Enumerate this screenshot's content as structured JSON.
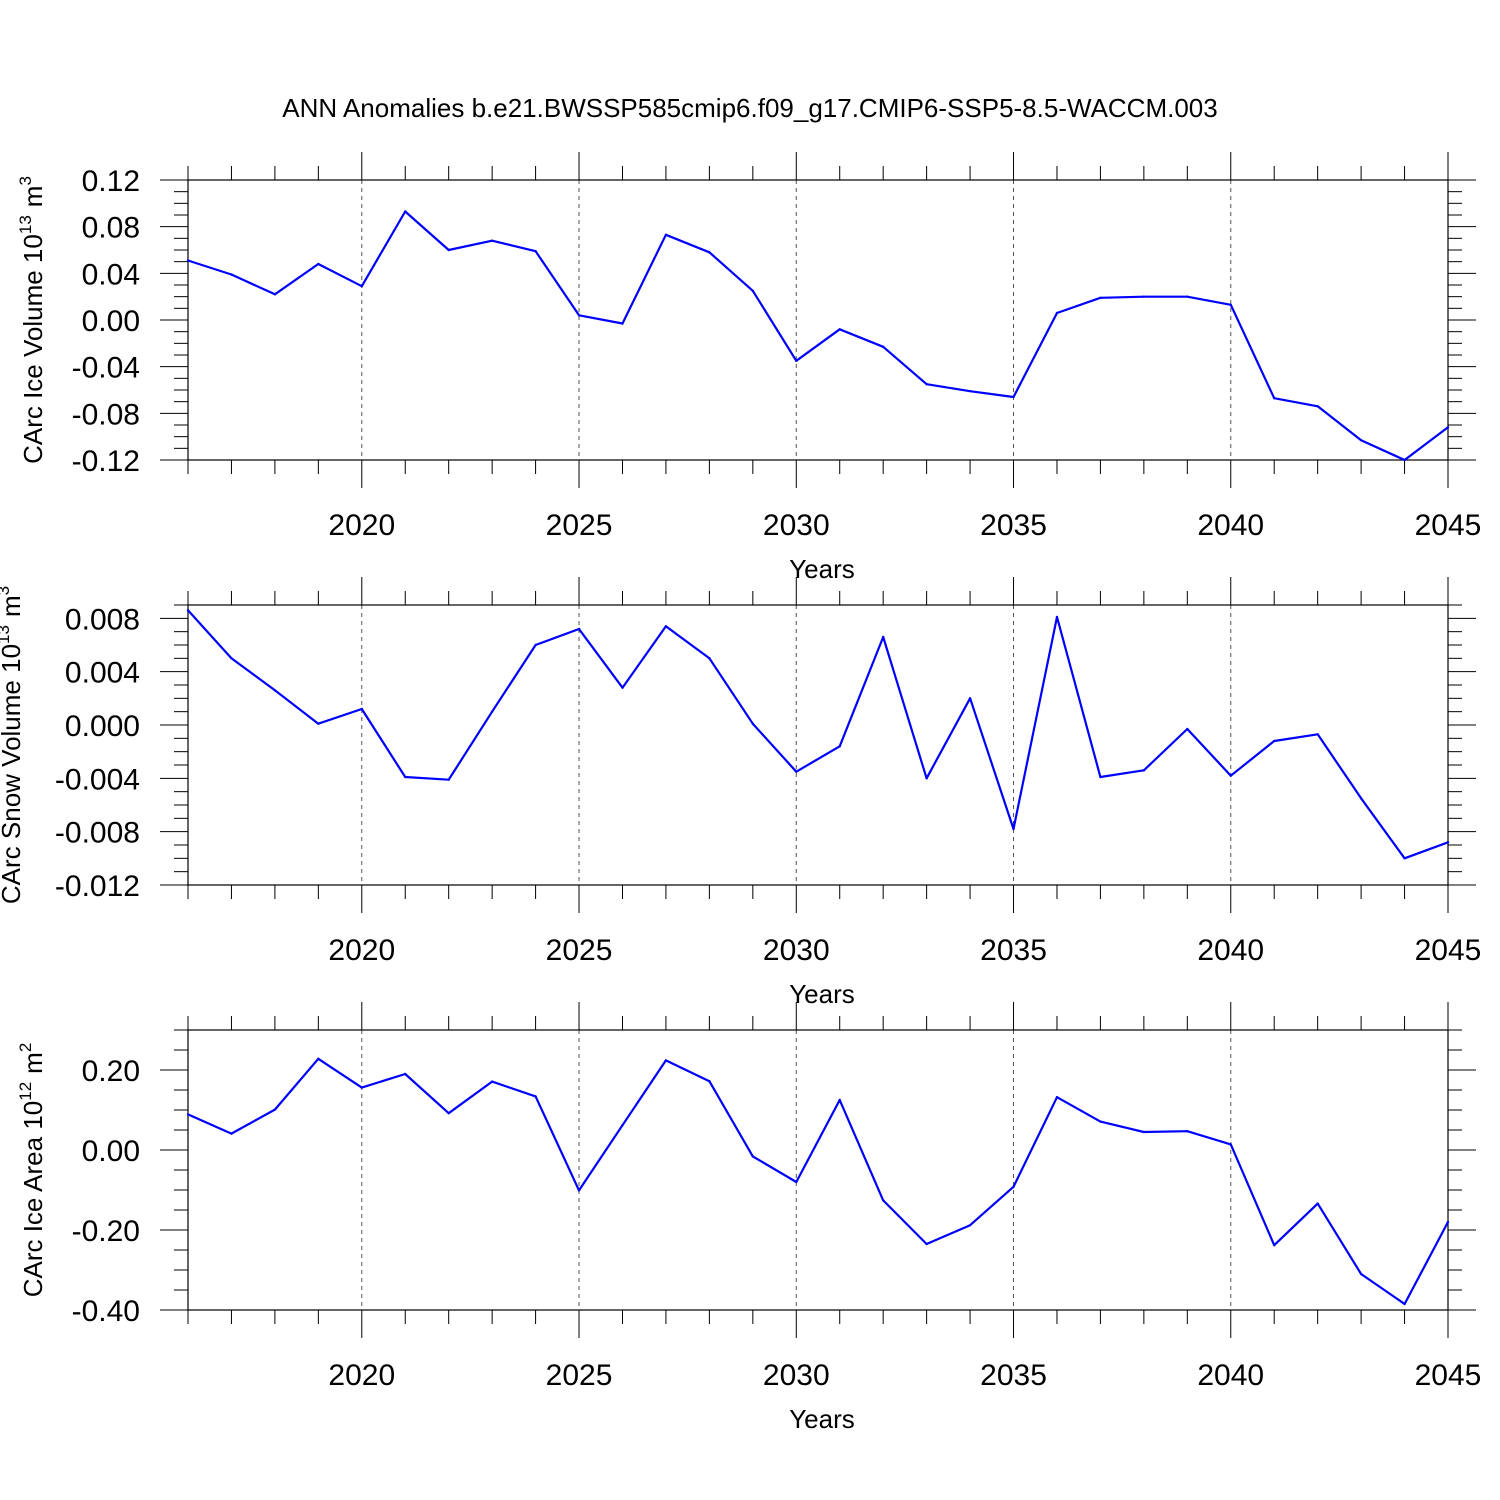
{
  "title": "ANN Anomalies b.e21.BWSSP585cmip6.f09_g17.CMIP6-SSP5-8.5-WACCM.003",
  "colors": {
    "series": "#0000ff",
    "axis": "#000000",
    "grid": "#555555"
  },
  "chart_data": [
    {
      "type": "line",
      "title": "",
      "xlabel": "Years",
      "ylabel": "CArc Ice Volume 10",
      "ylabel_exp": "13",
      "ylabel_unit": "m",
      "ylabel_unit_exp": "3",
      "xlim": [
        2016,
        2045
      ],
      "ylim": [
        -0.12,
        0.12
      ],
      "yticks": [
        0.12,
        0.08,
        0.04,
        0.0,
        -0.04,
        -0.08,
        -0.12
      ],
      "ytick_labels": [
        "0.12",
        "0.08",
        "0.04",
        "0.00",
        "-0.04",
        "-0.08",
        "-0.12"
      ],
      "xticks": [
        2020,
        2025,
        2030,
        2035,
        2040,
        2045
      ],
      "xtick_labels": [
        "2020",
        "2025",
        "2030",
        "2035",
        "2040",
        "2045"
      ],
      "x": [
        2016,
        2017,
        2018,
        2019,
        2020,
        2021,
        2022,
        2023,
        2024,
        2025,
        2026,
        2027,
        2028,
        2029,
        2030,
        2031,
        2032,
        2033,
        2034,
        2035,
        2036,
        2037,
        2038,
        2039,
        2040,
        2041,
        2042,
        2043,
        2044,
        2045
      ],
      "y": [
        0.051,
        0.039,
        0.022,
        0.048,
        0.029,
        0.093,
        0.06,
        0.068,
        0.059,
        0.004,
        -0.003,
        0.073,
        0.058,
        0.025,
        -0.035,
        -0.008,
        -0.023,
        -0.055,
        -0.061,
        -0.066,
        0.006,
        0.019,
        0.02,
        0.02,
        0.013,
        -0.067,
        -0.074,
        -0.103,
        -0.12,
        -0.092
      ]
    },
    {
      "type": "line",
      "title": "",
      "xlabel": "Years",
      "ylabel": "CArc Snow Volume 10",
      "ylabel_exp": "13",
      "ylabel_unit": "m",
      "ylabel_unit_exp": "3",
      "xlim": [
        2016,
        2045
      ],
      "ylim": [
        -0.012,
        0.009
      ],
      "yticks": [
        0.008,
        0.004,
        0.0,
        -0.004,
        -0.008,
        -0.012
      ],
      "ytick_labels": [
        "0.008",
        "0.004",
        "0.000",
        "-0.004",
        "-0.008",
        "-0.012"
      ],
      "xticks": [
        2020,
        2025,
        2030,
        2035,
        2040,
        2045
      ],
      "xtick_labels": [
        "2020",
        "2025",
        "2030",
        "2035",
        "2040",
        "2045"
      ],
      "x": [
        2016,
        2017,
        2018,
        2019,
        2020,
        2021,
        2022,
        2023,
        2024,
        2025,
        2026,
        2027,
        2028,
        2029,
        2030,
        2031,
        2032,
        2033,
        2034,
        2035,
        2036,
        2037,
        2038,
        2039,
        2040,
        2041,
        2042,
        2043,
        2044,
        2045
      ],
      "y": [
        0.0086,
        0.005,
        0.0026,
        0.0001,
        0.0012,
        -0.0039,
        -0.0041,
        0.001,
        0.006,
        0.0072,
        0.0028,
        0.0074,
        0.005,
        0.0001,
        -0.0035,
        -0.0016,
        0.0066,
        -0.004,
        0.002,
        -0.0078,
        0.0081,
        -0.0039,
        -0.0034,
        -0.0003,
        -0.0038,
        -0.0012,
        -0.0007,
        -0.0055,
        -0.01,
        -0.0088
      ]
    },
    {
      "type": "line",
      "title": "",
      "xlabel": "Years",
      "ylabel": "CArc Ice Area 10",
      "ylabel_exp": "12",
      "ylabel_unit": "m",
      "ylabel_unit_exp": "2",
      "xlim": [
        2016,
        2045
      ],
      "ylim": [
        -0.4,
        0.3
      ],
      "yticks": [
        0.2,
        0.0,
        -0.2,
        -0.4
      ],
      "ytick_labels": [
        "0.20",
        "0.00",
        "-0.20",
        "-0.40"
      ],
      "xticks": [
        2020,
        2025,
        2030,
        2035,
        2040,
        2045
      ],
      "xtick_labels": [
        "2020",
        "2025",
        "2030",
        "2035",
        "2040",
        "2045"
      ],
      "x": [
        2016,
        2017,
        2018,
        2019,
        2020,
        2021,
        2022,
        2023,
        2024,
        2025,
        2026,
        2027,
        2028,
        2029,
        2030,
        2031,
        2032,
        2033,
        2034,
        2035,
        2036,
        2037,
        2038,
        2039,
        2040,
        2041,
        2042,
        2043,
        2044,
        2045
      ],
      "y": [
        0.089,
        0.041,
        0.101,
        0.228,
        0.156,
        0.19,
        0.092,
        0.171,
        0.134,
        -0.101,
        0.062,
        0.224,
        0.172,
        -0.016,
        -0.08,
        0.125,
        -0.126,
        -0.235,
        -0.188,
        -0.092,
        0.132,
        0.071,
        0.045,
        0.047,
        0.014,
        -0.238,
        -0.134,
        -0.31,
        -0.385,
        -0.18
      ]
    }
  ]
}
